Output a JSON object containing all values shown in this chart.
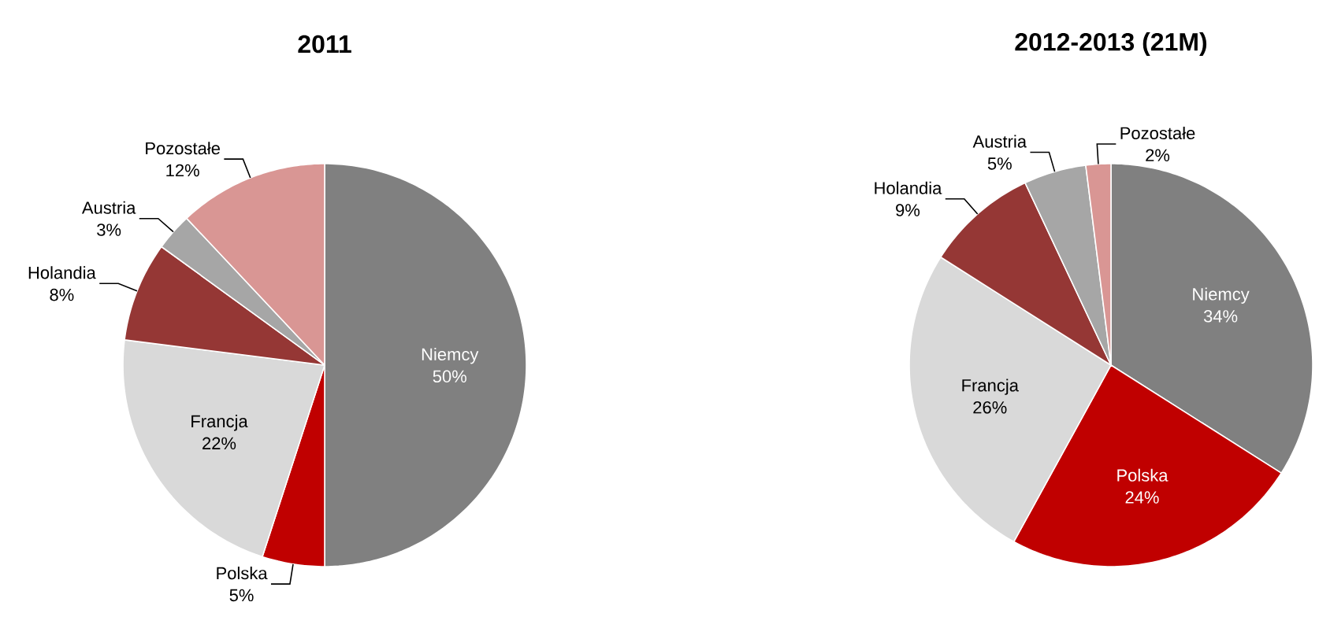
{
  "chart_data": [
    {
      "type": "pie",
      "title": "2011",
      "categories": [
        "Niemcy",
        "Polska",
        "Francja",
        "Holandia",
        "Austria",
        "Pozostałe"
      ],
      "values": [
        50,
        5,
        22,
        8,
        3,
        12
      ],
      "value_labels": [
        "50%",
        "5%",
        "22%",
        "8%",
        "3%",
        "12%"
      ],
      "colors": [
        "#808080",
        "#c00000",
        "#d9d9d9",
        "#953735",
        "#a6a6a6",
        "#d99694"
      ]
    },
    {
      "type": "pie",
      "title": "2012-2013 (21M)",
      "categories": [
        "Niemcy",
        "Polska",
        "Francja",
        "Holandia",
        "Austria",
        "Pozostałe"
      ],
      "values": [
        34,
        24,
        26,
        9,
        5,
        2
      ],
      "value_labels": [
        "34%",
        "24%",
        "26%",
        "9%",
        "5%",
        "2%"
      ],
      "colors": [
        "#808080",
        "#c00000",
        "#d9d9d9",
        "#953735",
        "#a6a6a6",
        "#d99694"
      ]
    }
  ]
}
